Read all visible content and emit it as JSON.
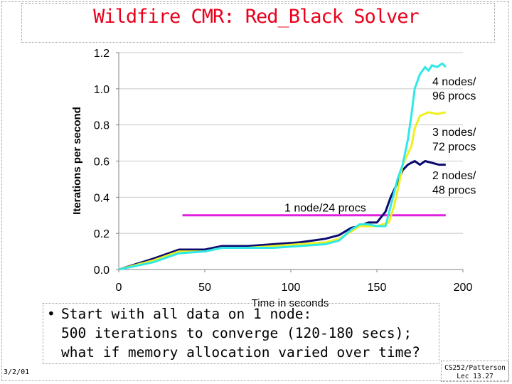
{
  "slide": {
    "title": "Wildfire CMR: Red_Black Solver",
    "bullet": "Start with all data on 1 node:\n500  iterations to converge (120-180 secs);\nwhat if memory allocation varied over time?",
    "bullet_marker": "•",
    "footer_date": "3/2/01",
    "footer_course": "CS252/Patterson",
    "footer_lecture": "Lec 13.27"
  },
  "chart_data": {
    "type": "line",
    "title": "",
    "xlabel": "Time in seconds",
    "ylabel": "Iterations per second",
    "xlim": [
      0,
      200
    ],
    "ylim": [
      0,
      1.2
    ],
    "x_ticks": [
      0,
      50,
      100,
      150,
      200
    ],
    "x_tick_labels": [
      "0",
      "50",
      "100",
      "150",
      "200"
    ],
    "y_ticks": [
      0,
      0.2,
      0.4,
      0.6,
      0.8,
      1.0,
      1.2
    ],
    "y_tick_labels": [
      "0.0",
      "0.2",
      "0.4",
      "0.6",
      "0.8",
      "1.0",
      "1.2"
    ],
    "grid": "horizontal",
    "series": [
      {
        "name": "1 node/24 procs",
        "color": "#e020e0",
        "x": [
          37,
          190
        ],
        "y": [
          0.3,
          0.3
        ]
      },
      {
        "name": "2 nodes/48 procs",
        "color": "#0a0a6e",
        "x": [
          0,
          20,
          35,
          50,
          60,
          75,
          90,
          105,
          120,
          128,
          135,
          140,
          145,
          150,
          155,
          158,
          162,
          165,
          168,
          172,
          175,
          178,
          182,
          186,
          190
        ],
        "y": [
          0,
          0.06,
          0.11,
          0.11,
          0.13,
          0.13,
          0.14,
          0.15,
          0.17,
          0.19,
          0.23,
          0.24,
          0.26,
          0.26,
          0.32,
          0.4,
          0.48,
          0.55,
          0.58,
          0.6,
          0.58,
          0.6,
          0.59,
          0.58,
          0.58
        ]
      },
      {
        "name": "3 nodes/72 procs",
        "color": "#f0f020",
        "x": [
          0,
          20,
          35,
          50,
          60,
          75,
          90,
          105,
          120,
          128,
          135,
          140,
          150,
          157,
          160,
          163,
          165,
          167,
          170,
          172,
          175,
          180,
          185,
          190
        ],
        "y": [
          0,
          0.05,
          0.1,
          0.1,
          0.12,
          0.12,
          0.13,
          0.14,
          0.15,
          0.17,
          0.21,
          0.24,
          0.24,
          0.26,
          0.35,
          0.48,
          0.58,
          0.62,
          0.68,
          0.78,
          0.85,
          0.87,
          0.86,
          0.87
        ]
      },
      {
        "name": "4 nodes/96 procs",
        "color": "#30e8e8",
        "x": [
          0,
          20,
          35,
          50,
          60,
          75,
          90,
          105,
          120,
          128,
          135,
          140,
          145,
          150,
          155,
          158,
          162,
          165,
          168,
          170,
          172,
          175,
          178,
          180,
          182,
          185,
          188,
          190
        ],
        "y": [
          0,
          0.04,
          0.09,
          0.1,
          0.12,
          0.12,
          0.12,
          0.13,
          0.14,
          0.16,
          0.22,
          0.25,
          0.25,
          0.24,
          0.24,
          0.35,
          0.5,
          0.58,
          0.72,
          0.85,
          1.0,
          1.08,
          1.12,
          1.1,
          1.13,
          1.12,
          1.14,
          1.12
        ]
      }
    ],
    "annotations": [
      {
        "text": "4 nodes/",
        "x": 188,
        "y": 1.02
      },
      {
        "text": "96 procs",
        "x": 188,
        "y": 0.94
      },
      {
        "text": "3 nodes/",
        "x": 188,
        "y": 0.74
      },
      {
        "text": "72 procs",
        "x": 188,
        "y": 0.66
      },
      {
        "text": "2 nodes/",
        "x": 188,
        "y": 0.5
      },
      {
        "text": "48 procs",
        "x": 188,
        "y": 0.42
      },
      {
        "text": "1 node/24 procs",
        "x": 120,
        "y": 0.32
      }
    ]
  }
}
